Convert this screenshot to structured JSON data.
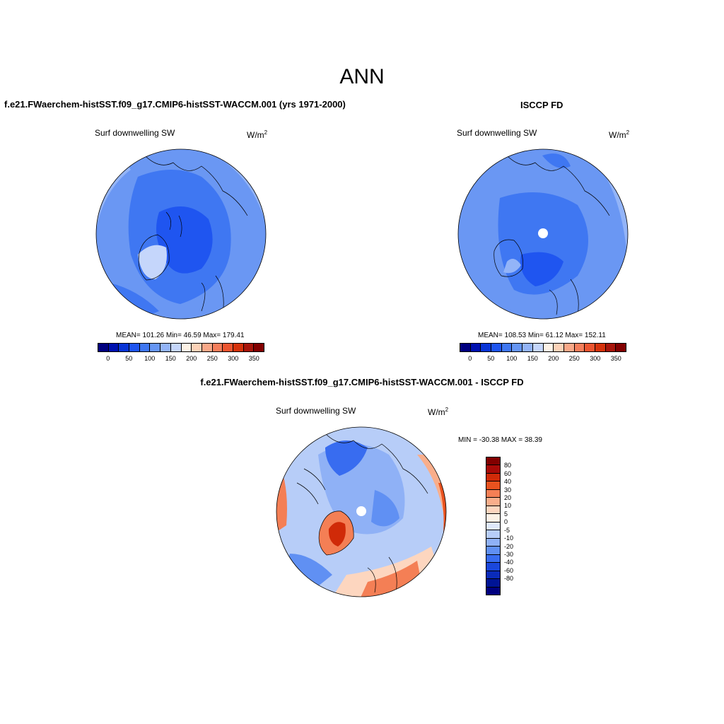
{
  "main_title": "ANN",
  "panels": [
    {
      "case_title": "f.e21.FWaerchem-histSST.f09_g17.CMIP6-histSST-WACCM.001 (yrs 1971-2000)",
      "var_label": "Surf downwelling SW",
      "unit": "W/m",
      "unit_sup": "2",
      "stats": "MEAN= 101.26  Min=  46.59  Max= 179.41"
    },
    {
      "case_title": "ISCCP FD",
      "var_label": "Surf downwelling SW",
      "unit": "W/m",
      "unit_sup": "2",
      "stats": "MEAN= 108.53  Min=  61.12  Max= 152.11"
    },
    {
      "case_title": "f.e21.FWaerchem-histSST.f09_g17.CMIP6-histSST-WACCM.001 - ISCCP FD",
      "var_label": "Surf downwelling SW",
      "unit": "W/m",
      "unit_sup": "2",
      "stats": "MIN = -30.38 MAX =  38.39"
    }
  ],
  "abs_colorbar": {
    "colors": [
      "#00007f",
      "#0011b0",
      "#0a35d6",
      "#1f55f0",
      "#3f77f2",
      "#6696f4",
      "#93b4f8",
      "#c5d6fb",
      "#fdf2e6",
      "#fcd2b8",
      "#f9a888",
      "#f47e5b",
      "#ec5530",
      "#d5320c",
      "#a8150b",
      "#820000"
    ],
    "labels": [
      "0",
      "50",
      "100",
      "150",
      "200",
      "250",
      "300",
      "350"
    ]
  },
  "diff_colorbar": {
    "colors": [
      "#820000",
      "#a80a08",
      "#d02a08",
      "#e9521f",
      "#f47f55",
      "#f9ae8b",
      "#fdd6bf",
      "#fdf2e6",
      "#dfe9fb",
      "#b7cdf8",
      "#8fb1f6",
      "#6090f3",
      "#386cf0",
      "#1a47dc",
      "#0a2bba",
      "#001495",
      "#00007f"
    ],
    "labels": [
      "80",
      "60",
      "40",
      "30",
      "20",
      "10",
      "5",
      "0",
      "-5",
      "-10",
      "-20",
      "-30",
      "-40",
      "-60",
      "-80"
    ]
  }
}
